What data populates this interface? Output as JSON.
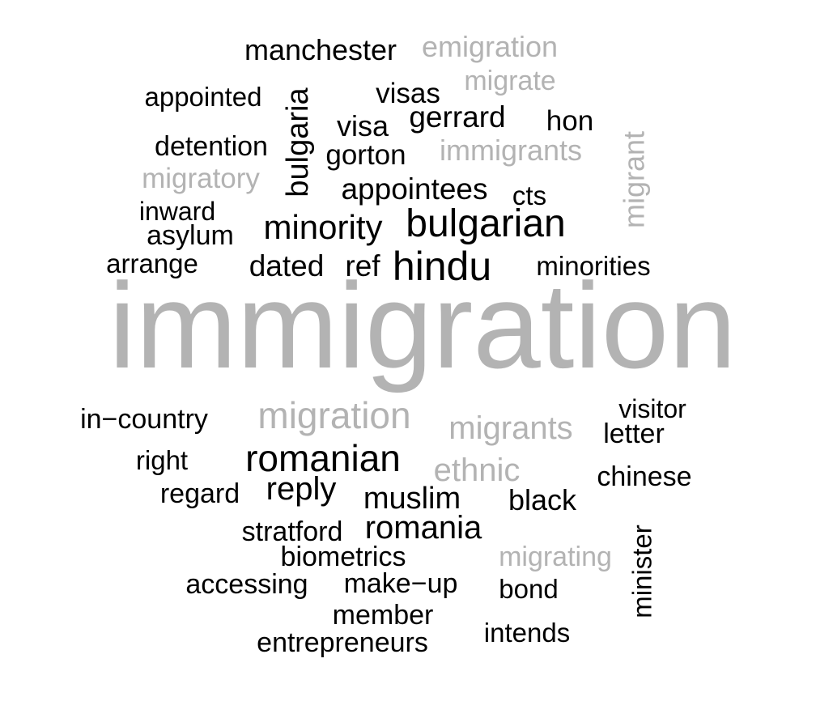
{
  "chart_data": {
    "type": "wordcloud",
    "palette": {
      "highlight": "#000000",
      "related": "#b3b3b3"
    },
    "words": [
      {
        "text": "immigration",
        "weight": 100,
        "group": "related",
        "rotated": false
      },
      {
        "text": "hindu",
        "weight": 40,
        "group": "highlight",
        "rotated": false
      },
      {
        "text": "bulgarian",
        "weight": 38,
        "group": "highlight",
        "rotated": false
      },
      {
        "text": "migration",
        "weight": 37,
        "group": "related",
        "rotated": false
      },
      {
        "text": "romanian",
        "weight": 37,
        "group": "highlight",
        "rotated": false
      },
      {
        "text": "minority",
        "weight": 33,
        "group": "highlight",
        "rotated": false
      },
      {
        "text": "bulgaria",
        "weight": 31,
        "group": "highlight",
        "rotated": true
      },
      {
        "text": "migrants",
        "weight": 31,
        "group": "related",
        "rotated": false
      },
      {
        "text": "ethnic",
        "weight": 31,
        "group": "related",
        "rotated": false
      },
      {
        "text": "reply",
        "weight": 31,
        "group": "highlight",
        "rotated": false
      },
      {
        "text": "romania",
        "weight": 31,
        "group": "highlight",
        "rotated": false
      },
      {
        "text": "muslim",
        "weight": 30,
        "group": "highlight",
        "rotated": false
      },
      {
        "text": "migrant",
        "weight": 29,
        "group": "related",
        "rotated": true
      },
      {
        "text": "gerrard",
        "weight": 29,
        "group": "highlight",
        "rotated": false
      },
      {
        "text": "appointees",
        "weight": 29,
        "group": "highlight",
        "rotated": false
      },
      {
        "text": "dated",
        "weight": 29,
        "group": "highlight",
        "rotated": false
      },
      {
        "text": "ref",
        "weight": 29,
        "group": "highlight",
        "rotated": false
      },
      {
        "text": "manchester",
        "weight": 28,
        "group": "highlight",
        "rotated": false
      },
      {
        "text": "emigration",
        "weight": 28,
        "group": "related",
        "rotated": false
      },
      {
        "text": "immigrants",
        "weight": 28,
        "group": "related",
        "rotated": false
      },
      {
        "text": "visa",
        "weight": 28,
        "group": "highlight",
        "rotated": false
      },
      {
        "text": "black",
        "weight": 28,
        "group": "highlight",
        "rotated": false
      },
      {
        "text": "minister",
        "weight": 28,
        "group": "highlight",
        "rotated": true
      },
      {
        "text": "visas",
        "weight": 27,
        "group": "highlight",
        "rotated": false
      },
      {
        "text": "gorton",
        "weight": 27,
        "group": "highlight",
        "rotated": false
      },
      {
        "text": "migratory",
        "weight": 27,
        "group": "related",
        "rotated": false
      },
      {
        "text": "hon",
        "weight": 27,
        "group": "highlight",
        "rotated": false
      },
      {
        "text": "regard",
        "weight": 27,
        "group": "highlight",
        "rotated": false
      },
      {
        "text": "chinese",
        "weight": 27,
        "group": "highlight",
        "rotated": false
      },
      {
        "text": "stratford",
        "weight": 27,
        "group": "highlight",
        "rotated": false
      },
      {
        "text": "migrating",
        "weight": 27,
        "group": "related",
        "rotated": false
      },
      {
        "text": "make−up",
        "weight": 27,
        "group": "highlight",
        "rotated": false
      },
      {
        "text": "entrepreneurs",
        "weight": 27,
        "group": "highlight",
        "rotated": false
      },
      {
        "text": "migrate",
        "weight": 26,
        "group": "related",
        "rotated": false
      },
      {
        "text": "detention",
        "weight": 26,
        "group": "highlight",
        "rotated": false
      },
      {
        "text": "in−country",
        "weight": 26,
        "group": "highlight",
        "rotated": false
      },
      {
        "text": "letter",
        "weight": 26,
        "group": "highlight",
        "rotated": false
      },
      {
        "text": "biometrics",
        "weight": 26,
        "group": "highlight",
        "rotated": false
      },
      {
        "text": "accessing",
        "weight": 26,
        "group": "highlight",
        "rotated": false
      },
      {
        "text": "asylum",
        "weight": 26,
        "group": "highlight",
        "rotated": false
      },
      {
        "text": "member",
        "weight": 26,
        "group": "highlight",
        "rotated": false
      },
      {
        "text": "arrange",
        "weight": 25,
        "group": "highlight",
        "rotated": false
      },
      {
        "text": "minorities",
        "weight": 25,
        "group": "highlight",
        "rotated": false
      },
      {
        "text": "cts",
        "weight": 25,
        "group": "highlight",
        "rotated": false
      },
      {
        "text": "appointed",
        "weight": 25,
        "group": "highlight",
        "rotated": false
      },
      {
        "text": "right",
        "weight": 25,
        "group": "highlight",
        "rotated": false
      },
      {
        "text": "bond",
        "weight": 25,
        "group": "highlight",
        "rotated": false
      },
      {
        "text": "intends",
        "weight": 25,
        "group": "highlight",
        "rotated": false
      },
      {
        "text": "visitor",
        "weight": 25,
        "group": "highlight",
        "rotated": false
      },
      {
        "text": "inward",
        "weight": 24,
        "group": "highlight",
        "rotated": false
      }
    ]
  }
}
